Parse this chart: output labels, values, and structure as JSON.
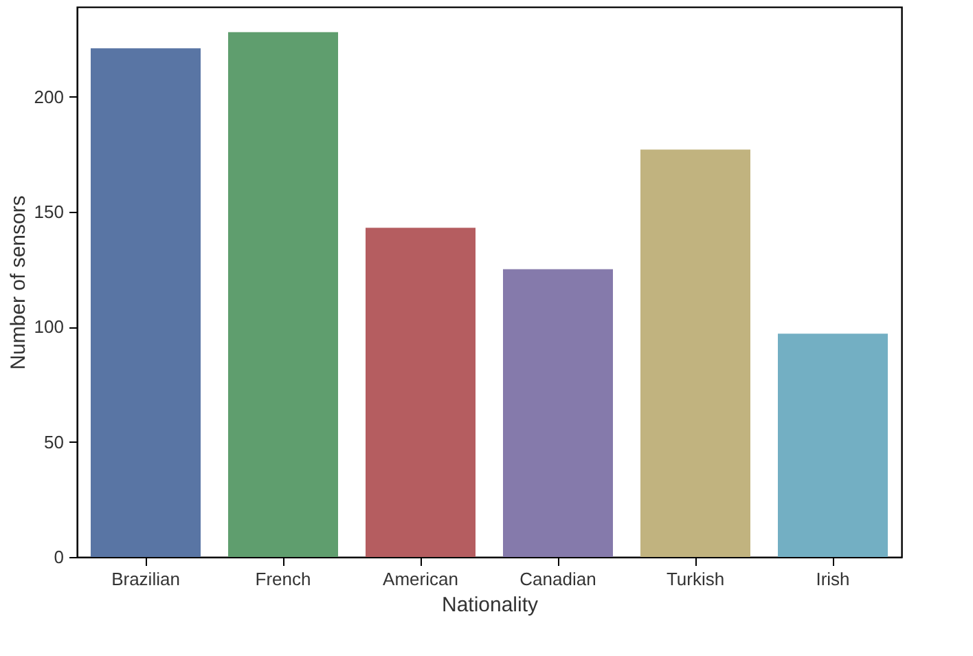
{
  "chart_data": {
    "type": "bar",
    "xlabel": "Nationality",
    "ylabel": "Number of sensors",
    "categories": [
      "Brazilian",
      "French",
      "American",
      "Canadian",
      "Turkish",
      "Irish"
    ],
    "values": [
      221,
      228,
      143,
      125,
      177,
      97
    ],
    "colors": [
      "#5975a4",
      "#5f9e6e",
      "#b55d60",
      "#857aab",
      "#c1b37f",
      "#73afc3"
    ],
    "ylim": [
      0,
      239
    ],
    "yticks": [
      0,
      50,
      100,
      150,
      200
    ],
    "grid": false,
    "legend": false
  }
}
